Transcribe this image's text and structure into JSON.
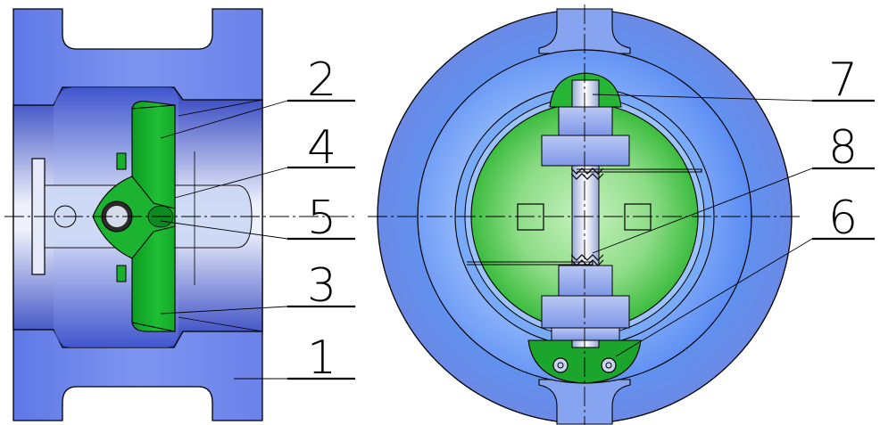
{
  "callouts": [
    {
      "id": "2",
      "text": "2"
    },
    {
      "id": "4",
      "text": "4"
    },
    {
      "id": "5",
      "text": "5"
    },
    {
      "id": "3",
      "text": "3"
    },
    {
      "id": "1",
      "text": "1"
    },
    {
      "id": "7",
      "text": "7"
    },
    {
      "id": "8",
      "text": "8"
    },
    {
      "id": "6",
      "text": "6"
    }
  ],
  "colors": {
    "body_blue": "#6e86ec",
    "body_light": "#8fb4f7",
    "disc_green": "#18b02a",
    "disc_light": "#8ee08f",
    "line": "#000000",
    "pin": "#c6d2ee"
  }
}
